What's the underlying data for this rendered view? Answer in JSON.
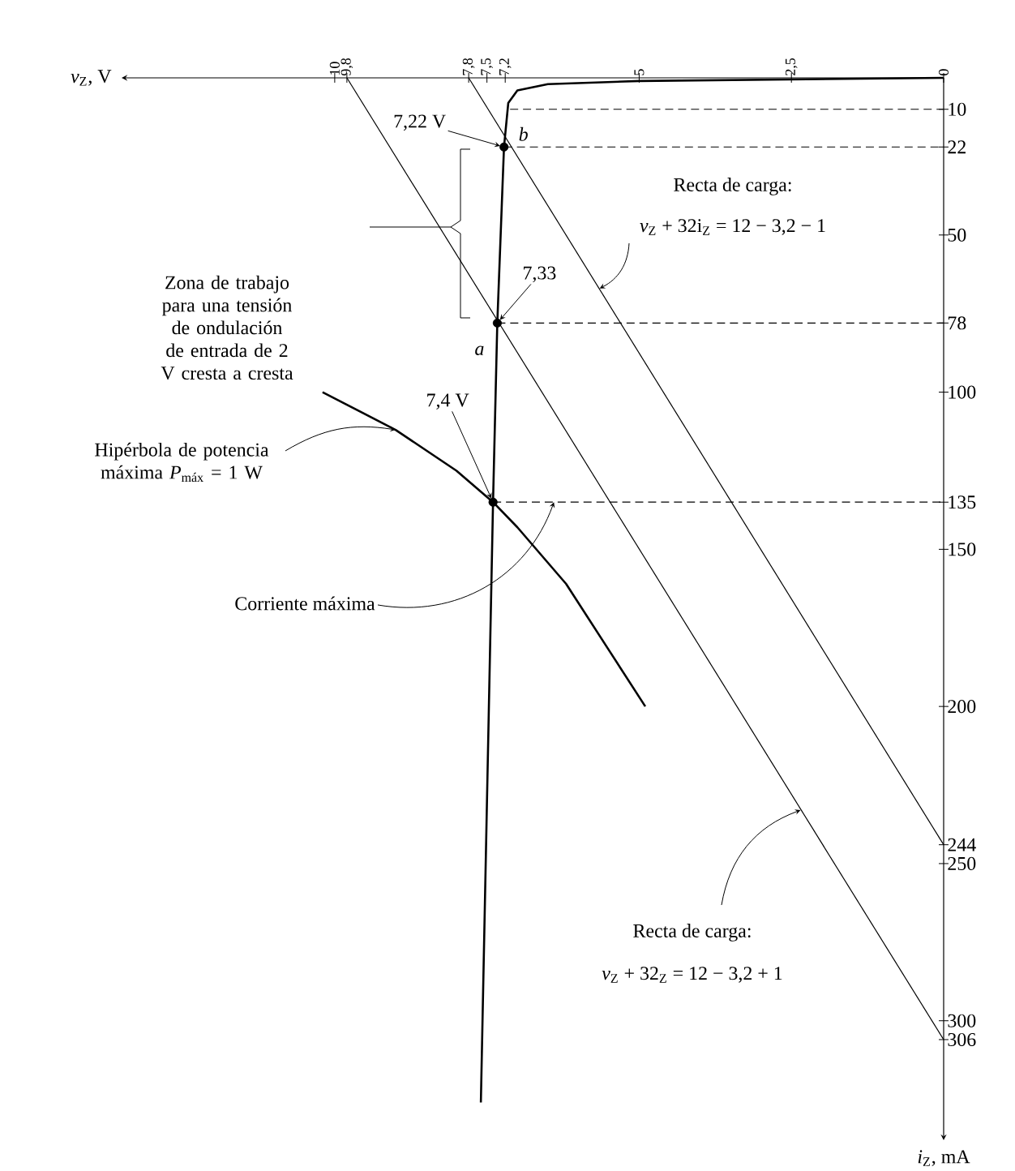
{
  "chart_data": {
    "type": "line",
    "xlabel": "*v*$_{Z}$, V",
    "ylabel": "*i*$_{Z}$, mA",
    "xlim": [
      13.5,
      0
    ],
    "ylim": [
      338,
      0
    ],
    "xticks": [
      0,
      {
        "value": 2.5,
        "label": "2,5"
      },
      5,
      {
        "value": 7.2,
        "label": "7,2"
      },
      {
        "value": 7.5,
        "label": "7,5"
      },
      {
        "value": 7.8,
        "label": "7,8"
      },
      {
        "value": 9.8,
        "label": "9,8"
      },
      10
    ],
    "yticks": [
      10,
      22,
      50,
      78,
      100,
      135,
      150,
      200,
      244,
      250,
      300,
      306
    ],
    "series": [
      {
        "color": "#000000",
        "line_style": "solid",
        "x": [
          0,
          2.5,
          5,
          6.5,
          7.0,
          7.15,
          7.22,
          7.33,
          7.4,
          7.6
        ],
        "values": [
          0,
          0.5,
          1,
          2,
          4,
          8,
          22,
          78,
          135,
          326
        ]
      },
      {
        "color": "#000000",
        "line_style": "solid",
        "x": [
          7.8,
          0
        ],
        "values": [
          0,
          244
        ]
      },
      {
        "color": "#000000",
        "line_style": "solid",
        "x": [
          9.8,
          0
        ],
        "values": [
          0,
          306
        ]
      },
      {
        "color": "#000000",
        "line_style": "solid",
        "x": [
          10.2,
          9,
          8,
          7.4,
          7,
          6.2,
          5.5,
          4.9
        ],
        "values": [
          100,
          112,
          125,
          135,
          143,
          161,
          182,
          200
        ]
      },
      {
        "color": "#000000",
        "line_style": "dashed",
        "x": [
          7.12,
          0
        ],
        "values": [
          10,
          10
        ]
      },
      {
        "color": "#000000",
        "line_style": "dashed",
        "x": [
          7.22,
          0
        ],
        "values": [
          22,
          22
        ]
      },
      {
        "color": "#000000",
        "line_style": "dashed",
        "x": [
          7.33,
          0
        ],
        "values": [
          78,
          78
        ]
      },
      {
        "color": "#000000",
        "line_style": "dashed",
        "x": [
          7.4,
          0
        ],
        "values": [
          135,
          135
        ]
      },
      {
        "type": "scatter",
        "color": "#000000",
        "marker": "circle",
        "x": [
          7.22,
          7.33,
          7.4
        ],
        "values": [
          22,
          78,
          135
        ]
      }
    ],
    "annotations": [
      {
        "text": "7,22 V",
        "x": 7.22,
        "y": 22
      },
      {
        "text": "*b*",
        "x": 7.22,
        "y": 22
      },
      {
        "text": "7,33",
        "x": 7.33,
        "y": 78
      },
      {
        "text": "*a*",
        "x": 7.33,
        "y": 78
      },
      {
        "text": "7,4 V",
        "x": 7.4,
        "y": 135
      },
      "Zona de trabajo para una tensión de ondulación de entrada de 2 V cresta a cresta",
      {
        "text": "Hipérbola de potencia máxima *P*$_{máx}$ = 1 W",
        "x": 9,
        "y": 112
      },
      {
        "text": "Corriente máxima",
        "x": 6.4,
        "y": 135
      },
      "Recta de carga:",
      {
        "text": "*v*$_{Z}$ + 32i$_{Z}$ = 12 − 3,2 − 1",
        "x": 5.65,
        "y": 67
      },
      {
        "text": "Recta de carga:",
        "x": 2.35,
        "y": 233
      },
      "*v*$_{Z}$ + 32$_{Z}$ = 12 − 3,2 + 1"
    ]
  }
}
